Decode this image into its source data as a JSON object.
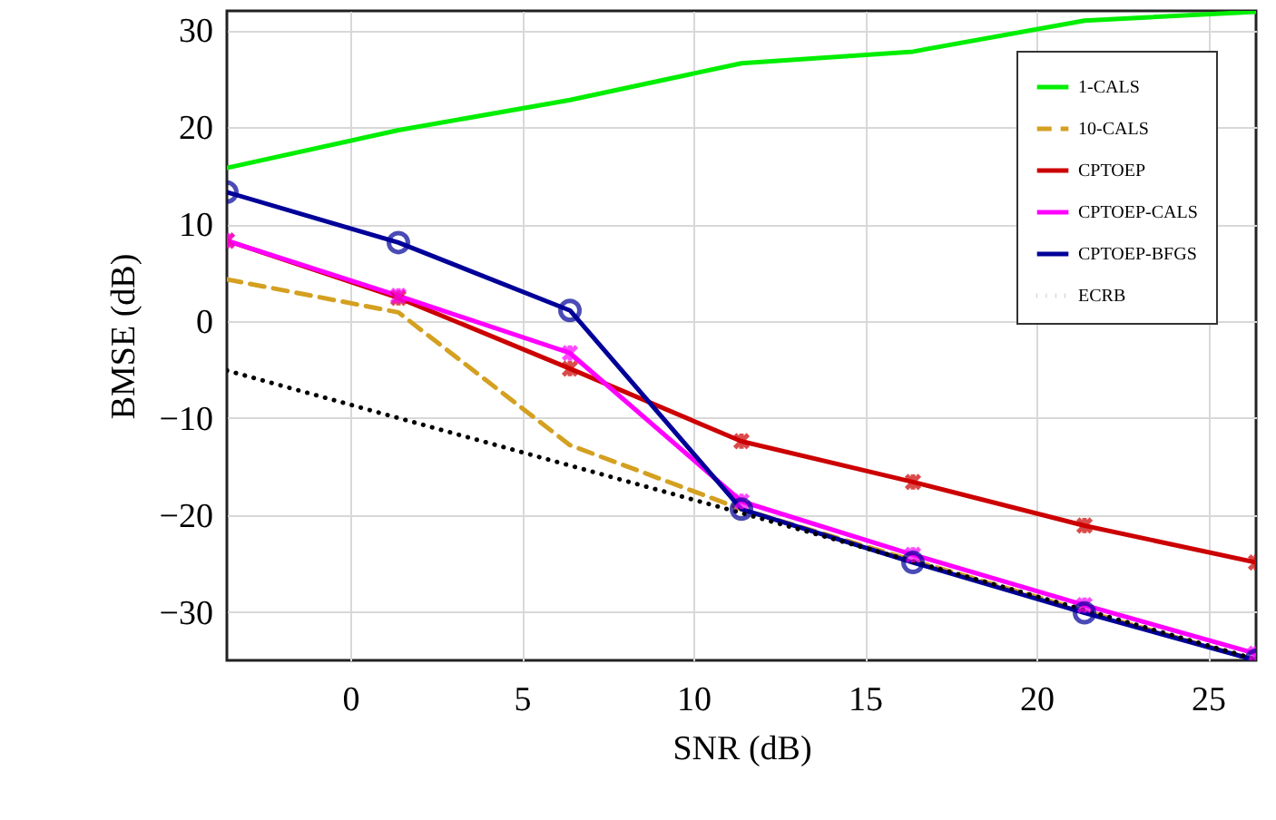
{
  "chart_data": {
    "type": "line",
    "xlabel": "SNR (dB)",
    "ylabel": "BMSE (dB)",
    "x": [
      -3.6,
      1.4,
      6.4,
      11.4,
      16.4,
      21.4,
      26.4
    ],
    "xlim": [
      -3.6,
      26.4
    ],
    "xticks": [
      0,
      5,
      10,
      15,
      20,
      25
    ],
    "ylim": [
      -35,
      32
    ],
    "yticks": [
      -30,
      -20,
      -10,
      0,
      10,
      20,
      30
    ],
    "grid": true,
    "legend": "top right",
    "series": [
      {
        "name": "1-CALS",
        "color": "#00ee00",
        "line_style": "solid",
        "marker": "none",
        "values": [
          15.8,
          19.7,
          22.8,
          26.6,
          27.8,
          31,
          31.9
        ]
      },
      {
        "name": "10-CALS",
        "color": "#d4a020",
        "line_style": "dashed",
        "marker": "none",
        "values": [
          4.3,
          0.9,
          -12.8,
          -19.4,
          -24.7,
          -29.9,
          -35
        ]
      },
      {
        "name": "CPTOEP",
        "color": "#cc0000",
        "line_style": "solid",
        "marker": "cross",
        "values": [
          8.3,
          2.4,
          -4.9,
          -12.4,
          -16.6,
          -21.1,
          -24.9
        ]
      },
      {
        "name": "CPTOEP-CALS",
        "color": "#ff00ff",
        "line_style": "solid",
        "marker": "cross",
        "values": [
          8.3,
          2.6,
          -3.3,
          -18.6,
          -24.1,
          -29.3,
          -34.3
        ]
      },
      {
        "name": "CPTOEP-BFGS",
        "color": "#000099",
        "line_style": "solid",
        "marker": "circle",
        "values": [
          13.3,
          8.1,
          1.1,
          -19.4,
          -24.9,
          -30.1,
          -35
        ]
      },
      {
        "name": "ECRB",
        "color": "#000000",
        "line_style": "dotted",
        "marker": "none",
        "values": [
          -5.1,
          -10,
          -14.9,
          -19.8,
          -24.8,
          -29.8,
          -34.9
        ]
      }
    ]
  }
}
